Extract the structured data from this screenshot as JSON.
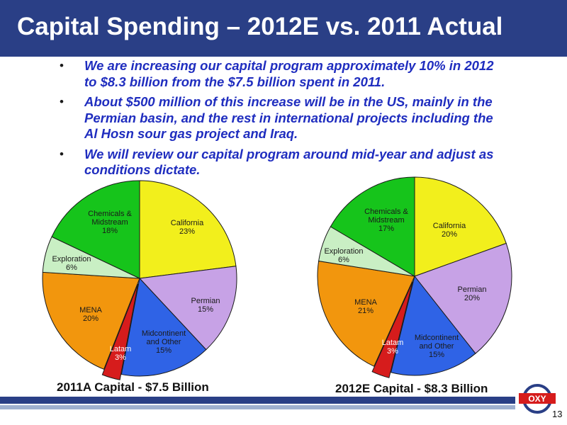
{
  "slide": {
    "title": "Capital Spending – 2012E vs. 2011 Actual",
    "bullet_symbol": "•",
    "bullets": [
      "We are increasing our capital program approximately 10% in 2012 to $8.3 billion from the $7.5 billion spent in 2011.",
      "About $500 million of this increase will be in the US, mainly in the Permian basin, and the rest in international projects including the Al Hosn sour gas project and Iraq.",
      "We will review our capital program around mid-year and adjust as conditions dictate."
    ],
    "logo_text": "OXY",
    "page_number": "13"
  },
  "colors": {
    "title_bar": "#2a3f86",
    "bullet_text": "#1f2dbf",
    "California": "#f2ef1c",
    "Permian": "#c7a2e6",
    "Midcontinent and Other": "#2f63e6",
    "Latam": "#d61c1c",
    "MENA": "#f2960d",
    "Exploration": "#c9efc4",
    "Chemicals & Midstream": "#16c41b"
  },
  "chart_data": [
    {
      "type": "pie",
      "title": "2011A Capital - $7.5 Billion",
      "slices": [
        {
          "name": "California",
          "value": 23,
          "label": "California\n23%"
        },
        {
          "name": "Permian",
          "value": 15,
          "label": "Permian\n15%"
        },
        {
          "name": "Midcontinent and Other",
          "value": 15,
          "label": "Midcontinent\nand Other\n15%"
        },
        {
          "name": "Latam",
          "value": 3,
          "label": "Latam\n3%"
        },
        {
          "name": "MENA",
          "value": 20,
          "label": "MENA\n20%"
        },
        {
          "name": "Exploration",
          "value": 6,
          "label": "Exploration\n6%"
        },
        {
          "name": "Chemicals & Midstream",
          "value": 18,
          "label": "Chemicals &\nMidstream\n18%"
        }
      ]
    },
    {
      "type": "pie",
      "title": "2012E Capital - $8.3 Billion",
      "slices": [
        {
          "name": "California",
          "value": 20,
          "label": "California\n20%"
        },
        {
          "name": "Permian",
          "value": 20,
          "label": "Permian\n20%"
        },
        {
          "name": "Midcontinent and Other",
          "value": 15,
          "label": "Midcontinent\nand Other\n15%"
        },
        {
          "name": "Latam",
          "value": 3,
          "label": "Latam\n3%"
        },
        {
          "name": "MENA",
          "value": 21,
          "label": "MENA\n21%"
        },
        {
          "name": "Exploration",
          "value": 6,
          "label": "Exploration\n6%"
        },
        {
          "name": "Chemicals & Midstream",
          "value": 17,
          "label": "Chemicals &\nMidstream\n17%"
        }
      ]
    }
  ]
}
